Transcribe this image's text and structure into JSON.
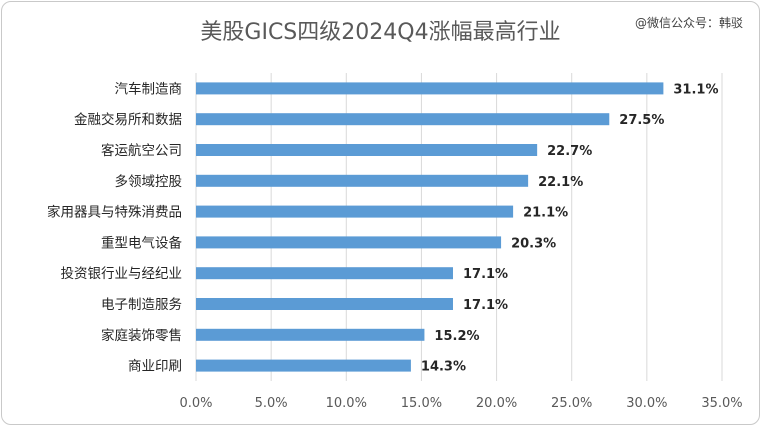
{
  "watermark": "@微信公众号：韩驳",
  "chart_data": {
    "type": "bar",
    "orientation": "horizontal",
    "title": "美股GICS四级2024Q4涨幅最高行业",
    "categories": [
      "汽车制造商",
      "金融交易所和数据",
      "客运航空公司",
      "多领域控股",
      "家用器具与特殊消费品",
      "重型电气设备",
      "投资银行业与经纪业",
      "电子制造服务",
      "家庭装饰零售",
      "商业印刷"
    ],
    "values": [
      31.1,
      27.5,
      22.7,
      22.1,
      21.1,
      20.3,
      17.1,
      17.1,
      15.2,
      14.3
    ],
    "value_labels": [
      "31.1%",
      "27.5%",
      "22.7%",
      "22.1%",
      "21.1%",
      "20.3%",
      "17.1%",
      "17.1%",
      "15.2%",
      "14.3%"
    ],
    "xlim": [
      0,
      35
    ],
    "x_ticks": [
      "0.0%",
      "5.0%",
      "10.0%",
      "15.0%",
      "20.0%",
      "25.0%",
      "30.0%",
      "35.0%"
    ],
    "grid": "vertical",
    "bar_color": "#5b9bd5",
    "grid_color": "#d9d9d9"
  }
}
